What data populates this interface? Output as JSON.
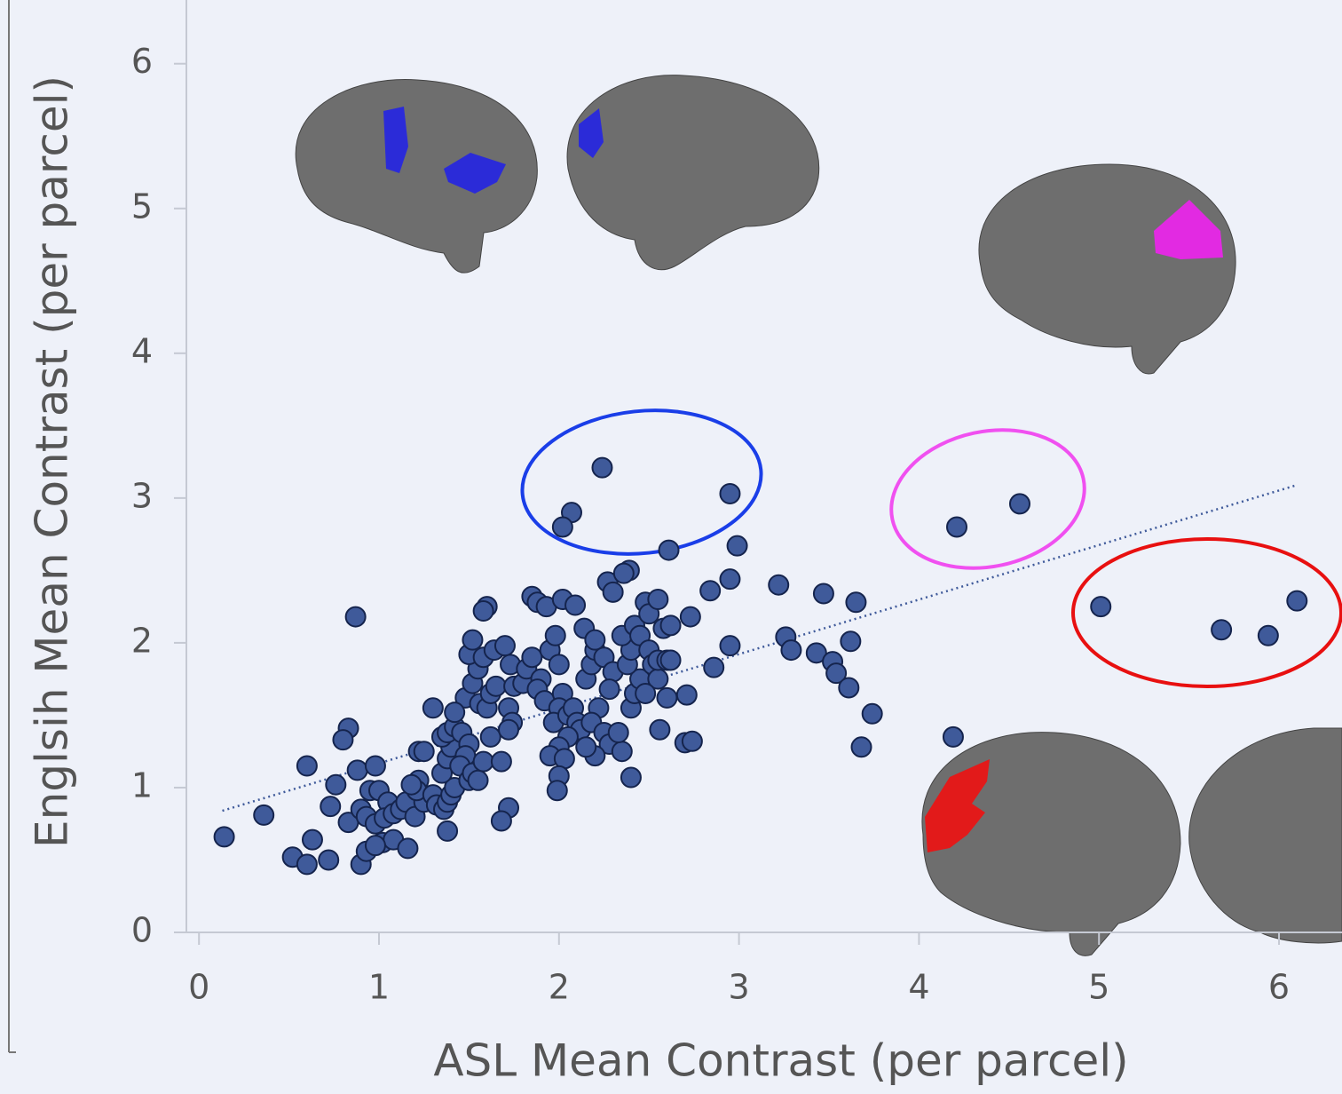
{
  "chart_data": {
    "type": "scatter",
    "xlabel": "ASL Mean Contrast (per parcel)",
    "ylabel": "Englsih Mean Contrast (per parcel)",
    "xlim": [
      -0.07,
      6.35
    ],
    "ylim": [
      0,
      6.44
    ],
    "xticks": [
      0,
      1,
      2,
      3,
      4,
      5,
      6
    ],
    "yticks": [
      0,
      1,
      2,
      3,
      4,
      5,
      6
    ],
    "color": "#3f5a9a",
    "x": [
      0.14,
      0.36,
      0.87,
      0.52,
      0.6,
      0.63,
      0.72,
      0.6,
      0.9,
      0.83,
      0.8,
      0.76,
      0.73,
      0.83,
      2.24,
      2.07,
      2.02,
      2.95,
      4.21,
      4.56,
      5.01,
      5.68,
      5.94,
      6.1,
      2.61,
      2.99,
      2.95,
      3.22,
      3.47,
      3.65,
      3.62,
      3.26,
      3.29,
      3.43,
      3.52,
      3.54,
      3.61,
      3.74,
      3.68,
      4.19,
      2.86,
      2.95,
      2.84,
      2.73,
      2.71,
      2.7,
      2.74,
      2.56,
      2.4,
      2.39,
      2.27,
      0.88,
      0.98,
      0.95,
      1.0,
      1.05,
      0.9,
      0.93,
      0.98,
      1.03,
      1.08,
      1.12,
      1.15,
      1.2,
      1.25,
      1.22,
      1.21,
      1.02,
      1.08,
      1.16,
      0.93,
      0.98,
      1.3,
      1.32,
      1.36,
      1.38,
      1.4,
      1.42,
      1.35,
      1.38,
      1.4,
      1.35,
      1.38,
      1.42,
      1.46,
      1.5,
      1.48,
      1.45,
      1.5,
      1.52,
      1.55,
      1.58,
      1.62,
      1.68,
      1.72,
      1.68,
      1.38,
      1.22,
      1.48,
      1.52,
      1.55,
      1.5,
      1.56,
      1.6,
      1.62,
      1.65,
      1.58,
      1.64,
      1.7,
      1.73,
      1.75,
      1.72,
      1.74,
      1.72,
      1.52,
      1.6,
      1.58,
      1.85,
      1.88,
      1.93,
      2.02,
      2.09,
      1.8,
      1.82,
      1.85,
      1.9,
      1.88,
      1.92,
      1.95,
      1.98,
      2.0,
      2.02,
      2.0,
      1.97,
      2.05,
      2.08,
      2.1,
      2.12,
      2.05,
      2.0,
      1.95,
      2.03,
      2.0,
      1.99,
      2.15,
      2.18,
      2.2,
      2.14,
      2.2,
      2.25,
      2.3,
      2.28,
      2.22,
      2.18,
      2.25,
      2.28,
      2.2,
      2.15,
      2.35,
      2.33,
      2.4,
      2.42,
      2.45,
      2.38,
      2.4,
      2.35,
      2.42,
      2.48,
      2.45,
      2.5,
      2.52,
      2.55,
      2.48,
      2.6,
      2.55,
      2.6,
      2.62,
      2.58,
      2.62,
      2.5,
      2.3,
      2.36,
      2.55,
      1.42,
      1.3,
      1.25,
      1.18
    ],
    "values": [
      0.66,
      0.81,
      2.18,
      0.52,
      0.47,
      0.64,
      0.5,
      1.15,
      0.47,
      1.41,
      1.33,
      1.02,
      0.87,
      0.76,
      3.21,
      2.9,
      2.8,
      3.03,
      2.8,
      2.96,
      2.25,
      2.09,
      2.05,
      2.29,
      2.64,
      2.67,
      2.44,
      2.4,
      2.34,
      2.28,
      2.01,
      2.04,
      1.95,
      1.93,
      1.87,
      1.79,
      1.69,
      1.51,
      1.28,
      1.35,
      1.83,
      1.98,
      2.36,
      2.18,
      1.64,
      1.31,
      1.32,
      1.4,
      1.07,
      2.5,
      2.42,
      1.12,
      1.15,
      0.98,
      0.98,
      0.9,
      0.85,
      0.8,
      0.75,
      0.79,
      0.82,
      0.85,
      0.9,
      0.8,
      0.9,
      1.05,
      0.98,
      0.62,
      0.64,
      0.58,
      0.56,
      0.6,
      0.95,
      0.88,
      0.85,
      0.9,
      0.95,
      1.0,
      1.1,
      1.2,
      1.28,
      1.35,
      1.38,
      1.42,
      1.38,
      1.3,
      1.22,
      1.15,
      1.05,
      1.1,
      1.05,
      1.18,
      1.35,
      1.18,
      0.86,
      0.77,
      0.7,
      1.25,
      1.62,
      1.72,
      1.82,
      1.92,
      1.58,
      1.55,
      1.65,
      1.7,
      1.9,
      1.95,
      1.98,
      1.85,
      1.7,
      1.55,
      1.45,
      1.4,
      2.02,
      2.25,
      2.22,
      2.32,
      2.28,
      2.25,
      2.3,
      2.26,
      1.72,
      1.82,
      1.9,
      1.75,
      1.68,
      1.6,
      1.95,
      2.05,
      1.85,
      1.65,
      1.55,
      1.45,
      1.5,
      1.55,
      1.45,
      1.4,
      1.35,
      1.28,
      1.22,
      1.2,
      1.08,
      0.98,
      1.75,
      1.85,
      1.95,
      2.1,
      2.02,
      1.9,
      1.8,
      1.68,
      1.55,
      1.45,
      1.38,
      1.3,
      1.22,
      1.28,
      1.25,
      1.38,
      1.55,
      1.65,
      1.75,
      1.85,
      1.95,
      2.05,
      2.12,
      2.28,
      2.05,
      1.95,
      1.85,
      1.75,
      1.65,
      1.62,
      1.88,
      1.88,
      1.88,
      2.1,
      2.12,
      2.2,
      2.35,
      2.48,
      2.3,
      1.52,
      1.55,
      1.25,
      1.02
    ],
    "trendline": {
      "x": [
        0.13,
        6.1
      ],
      "y": [
        0.84,
        3.09
      ]
    }
  }
}
